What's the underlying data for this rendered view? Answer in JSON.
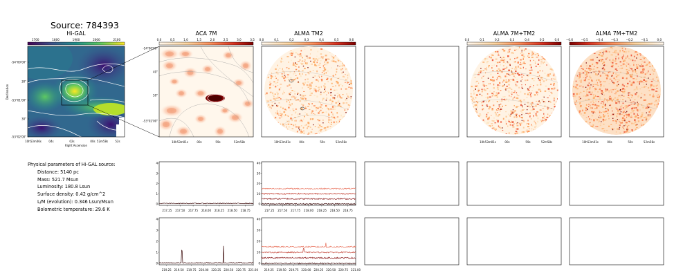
{
  "source_title": "Source: 784393",
  "panels": {
    "higal": "Hi-GAL",
    "aca": "ACA 7M",
    "tm2": "ALMA TM2",
    "comb1": "ALMA 7M+TM2",
    "comb2": "ALMA 7M+TM2"
  },
  "colorbars": {
    "higal": [
      "1700",
      "1800",
      "1900",
      "2000",
      "2100"
    ],
    "aca": [
      "0.0",
      "0.5",
      "1.0",
      "1.5",
      "2.0",
      "2.5",
      "3.0",
      "3.5"
    ],
    "tm2": [
      "0.0",
      "0.1",
      "0.2",
      "0.3",
      "0.4",
      "0.5",
      "0.6"
    ],
    "comb1": [
      "0.0",
      "0.1",
      "0.2",
      "0.3",
      "0.4",
      "0.5",
      "0.6"
    ],
    "comb2": [
      "−0.6",
      "−0.5",
      "−0.4",
      "−0.3",
      "−0.2",
      "−0.1",
      "0.0"
    ]
  },
  "higal_axes": {
    "ylabel": "Declination",
    "xlabel": "Right Ascension",
    "yticks": [
      "-54°00'00\"",
      "30\"",
      "-53°01'00\"",
      "30\"",
      "-53°02'00\""
    ],
    "xticks": [
      "10h53m06s",
      "04s",
      "02s",
      "00s",
      "52m58s",
      "52s"
    ]
  },
  "image_axes": {
    "aca_yticks": [
      "-54°00'00\"",
      "40\"",
      "50\"",
      "-53°02'00\""
    ],
    "radec_xticks": [
      "10h53m01s",
      "00s",
      "59s",
      "52m58s"
    ],
    "radec_xticks_aca": [
      "10h53m01s",
      "00s",
      "59s",
      "52m58s"
    ]
  },
  "params": {
    "heading": "Physical parameters of Hi-GAL source:",
    "lines": [
      "Distance: 5140 pc",
      "Mass: 521.7 Msun",
      "Luminosity: 180.8 Lsun",
      "Surface density: 0.42 g/cm^2",
      "L/M (evolution): 0.346 Lsun/Msun",
      "Bolometric temperature: 29.6 K"
    ]
  },
  "colors": {
    "background": "#ffffff",
    "spectrum_dark": "#3b0a0a",
    "spectrum_mid": "#8b1a1a",
    "spectrum_red": "#c0392b",
    "spectrum_light": "#e8705a",
    "contour": "#ffffff"
  },
  "chart_data": [
    {
      "type": "line",
      "id": "spec_aca_top",
      "ylim": [
        0,
        4
      ],
      "yticks": [
        "0",
        "1",
        "2",
        "3",
        "4"
      ],
      "x_ticks": [
        "217.25",
        "217.50",
        "217.75",
        "218.00",
        "218.25",
        "218.50",
        "218.75"
      ],
      "xlim": [
        217.1,
        218.9
      ],
      "series": [
        {
          "values_range": [
            217.1,
            218.9
          ],
          "level": 0.05,
          "noise": 0.04
        }
      ]
    },
    {
      "type": "line",
      "id": "spec_tm2_top",
      "ylim": [
        0,
        40
      ],
      "yticks": [
        "0",
        "10",
        "20",
        "30",
        "40"
      ],
      "x_ticks": [
        "217.25",
        "217.50",
        "217.75",
        "218.00",
        "218.25",
        "218.50",
        "218.75"
      ],
      "xlim": [
        217.1,
        218.9
      ],
      "series": [
        {
          "level": 0,
          "noise": 0.6
        },
        {
          "level": 5,
          "noise": 0.6
        },
        {
          "level": 10,
          "noise": 0.6
        },
        {
          "level": 15,
          "noise": 0.6
        }
      ]
    },
    {
      "type": "line",
      "id": "spec_aca_bottom",
      "ylim": [
        0,
        4
      ],
      "yticks": [
        "0",
        "1",
        "2",
        "3",
        "4"
      ],
      "x_ticks": [
        "219.25",
        "219.50",
        "219.75",
        "220.00",
        "220.25",
        "220.50",
        "220.75",
        "221.00"
      ],
      "xlim": [
        219.1,
        221.0
      ],
      "series": [
        {
          "level": 0.05,
          "noise": 0.04,
          "peaks": [
            [
              219.56,
              1.1
            ],
            [
              220.4,
              1.5
            ]
          ]
        }
      ]
    },
    {
      "type": "line",
      "id": "spec_tm2_bottom",
      "ylim": [
        0,
        40
      ],
      "yticks": [
        "0",
        "10",
        "20",
        "30",
        "40"
      ],
      "x_ticks": [
        "219.25",
        "219.50",
        "219.75",
        "220.00",
        "220.25",
        "220.50",
        "220.75",
        "221.00"
      ],
      "xlim": [
        219.1,
        221.0
      ],
      "series": [
        {
          "level": 0,
          "noise": 0.6
        },
        {
          "level": 5,
          "noise": 0.6
        },
        {
          "level": 10,
          "noise": 0.6,
          "peaks": [
            [
              219.95,
              3
            ]
          ]
        },
        {
          "level": 15,
          "noise": 0.6,
          "peaks": [
            [
              220.4,
              4
            ]
          ]
        }
      ]
    }
  ]
}
